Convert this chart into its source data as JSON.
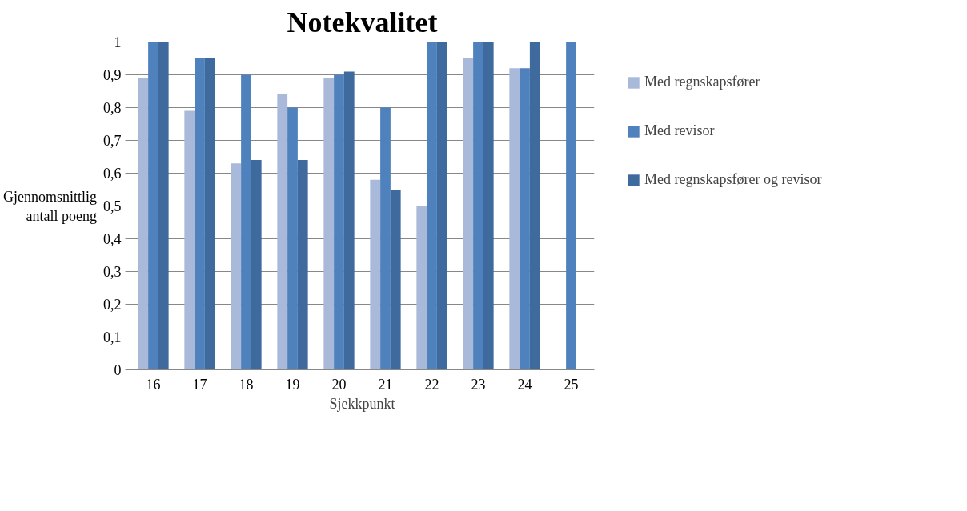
{
  "chart_data": {
    "type": "bar",
    "title": "Notekvalitet",
    "xlabel": "Sjekkpunkt",
    "ylabel": "Gjennomsnittlig antall poeng",
    "categories": [
      "16",
      "17",
      "18",
      "19",
      "20",
      "21",
      "22",
      "23",
      "24",
      "25"
    ],
    "series": [
      {
        "name": "Med regnskapsfører",
        "color": "#a9b9d9",
        "values": [
          0.89,
          0.79,
          0.63,
          0.84,
          0.89,
          0.58,
          0.5,
          0.95,
          0.92,
          null
        ]
      },
      {
        "name": "Med revisor",
        "color": "#4f81bd",
        "values": [
          1,
          0.95,
          0.9,
          0.8,
          0.9,
          0.8,
          1,
          1,
          0.92,
          1
        ]
      },
      {
        "name": "Med regnskapsfører og revisor",
        "color": "#3f6a9e",
        "values": [
          1,
          0.95,
          0.64,
          0.64,
          0.91,
          0.55,
          1,
          1,
          1,
          null
        ]
      }
    ],
    "ylim": [
      0,
      1
    ],
    "yticks": [
      0,
      {
        "value": 0.1,
        "label": "0,1"
      },
      {
        "value": 0.2,
        "label": "0,2"
      },
      {
        "value": 0.3,
        "label": "0,3"
      },
      {
        "value": 0.4,
        "label": "0,4"
      },
      {
        "value": 0.5,
        "label": "0,5"
      },
      {
        "value": 0.6,
        "label": "0,6"
      },
      {
        "value": 0.7,
        "label": "0,7"
      },
      {
        "value": 0.8,
        "label": "0,8"
      },
      {
        "value": 0.9,
        "label": "0,9"
      },
      1
    ],
    "grid": "y",
    "legend": "right"
  }
}
